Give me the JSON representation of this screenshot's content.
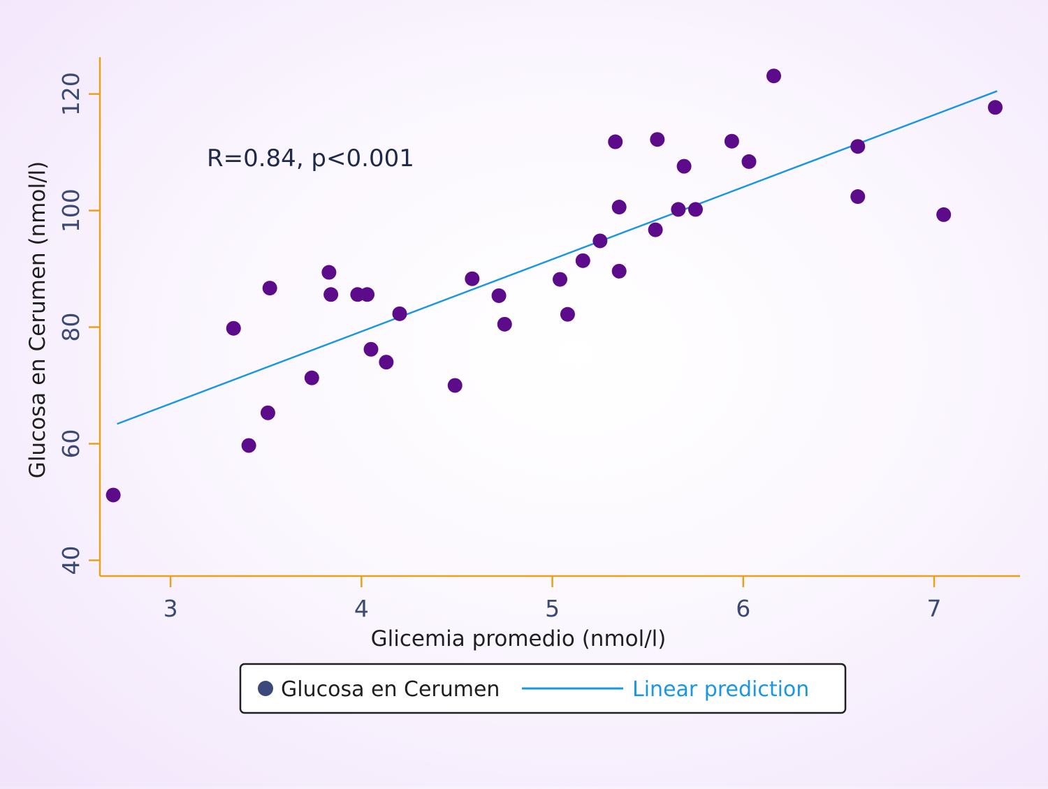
{
  "chart_data": {
    "type": "scatter",
    "title": "",
    "xlabel": "Glicemia promedio (nmol/l)",
    "ylabel": "Glucosa en Cerumen  (nmol/l)",
    "xlim": [
      2.63,
      7.45
    ],
    "ylim": [
      37.3,
      126.3
    ],
    "xticks": [
      3,
      4,
      5,
      6,
      7
    ],
    "yticks": [
      40,
      60,
      80,
      100,
      120
    ],
    "grid": false,
    "annotation": "R=0.84, p<0.001",
    "legend": {
      "position": "bottom",
      "items": [
        "Glucosa en Cerumen",
        "Linear prediction"
      ]
    },
    "series": [
      {
        "name": "Glucosa en Cerumen",
        "kind": "scatter",
        "color": "#5c0b8a",
        "legend_color": "#3b4a7a",
        "points": [
          [
            2.7,
            51.2
          ],
          [
            3.33,
            79.8
          ],
          [
            3.41,
            59.7
          ],
          [
            3.51,
            65.3
          ],
          [
            3.52,
            86.7
          ],
          [
            3.74,
            71.3
          ],
          [
            3.83,
            89.4
          ],
          [
            3.84,
            85.6
          ],
          [
            3.98,
            85.6
          ],
          [
            4.03,
            85.6
          ],
          [
            4.05,
            76.2
          ],
          [
            4.13,
            74.0
          ],
          [
            4.2,
            82.3
          ],
          [
            4.49,
            70.0
          ],
          [
            4.58,
            88.3
          ],
          [
            4.72,
            85.4
          ],
          [
            4.75,
            80.5
          ],
          [
            5.04,
            88.2
          ],
          [
            5.08,
            82.2
          ],
          [
            5.16,
            91.4
          ],
          [
            5.25,
            94.8
          ],
          [
            5.33,
            111.8
          ],
          [
            5.35,
            100.6
          ],
          [
            5.35,
            89.6
          ],
          [
            5.54,
            96.7
          ],
          [
            5.55,
            112.2
          ],
          [
            5.66,
            100.2
          ],
          [
            5.69,
            107.6
          ],
          [
            5.75,
            100.2
          ],
          [
            5.94,
            111.9
          ],
          [
            6.03,
            108.4
          ],
          [
            6.16,
            123.1
          ],
          [
            6.6,
            111.0
          ],
          [
            6.6,
            102.4
          ],
          [
            7.05,
            99.3
          ],
          [
            7.32,
            117.7
          ]
        ]
      },
      {
        "name": "Linear prediction",
        "kind": "line",
        "color": "#1a97e0",
        "points": [
          [
            2.72,
            63.4
          ],
          [
            7.33,
            120.5
          ]
        ]
      }
    ]
  },
  "colors": {
    "axis": "#e6a21a",
    "tick_text": "#3a4a73",
    "label_text": "#1f1f1f",
    "annotation_text": "#1e2a4a",
    "legend_border": "#1f1f1f",
    "legend_bg": "#ffffff"
  }
}
